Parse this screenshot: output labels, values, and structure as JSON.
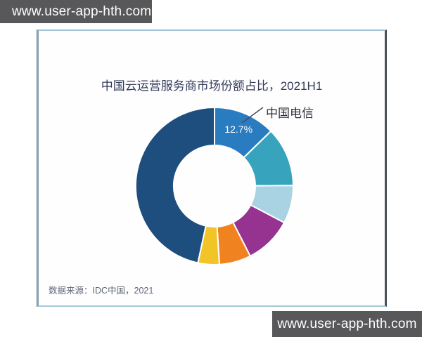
{
  "watermarks": {
    "top": "www.user-app-hth.com",
    "bottom": "www.user-app-hth.com"
  },
  "chart_data": {
    "type": "pie",
    "subtype": "donut",
    "title": "中国云运营服务商市场份额占比，2021H1",
    "source": "数据来源：IDC中国，2021",
    "unit": "%",
    "start_angle_deg": 0,
    "direction": "clockwise",
    "inner_radius_ratio": 0.52,
    "legend": "none",
    "callout": {
      "label": "中国电信",
      "target_slice": "中国电信"
    },
    "slices": [
      {
        "name": "中国电信",
        "value": 12.7,
        "color": "#2a7cc0",
        "data_label": "12.7%"
      },
      {
        "name": "unlabeled-2",
        "value": 12.2,
        "color": "#38a3bd"
      },
      {
        "name": "unlabeled-3",
        "value": 7.8,
        "color": "#a9d2e2"
      },
      {
        "name": "unlabeled-4",
        "value": 9.8,
        "color": "#96328f"
      },
      {
        "name": "unlabeled-5",
        "value": 6.5,
        "color": "#f08220"
      },
      {
        "name": "unlabeled-6",
        "value": 4.4,
        "color": "#f2c428"
      },
      {
        "name": "unlabeled-7",
        "value": 46.6,
        "color": "#1d4e7e"
      }
    ]
  }
}
